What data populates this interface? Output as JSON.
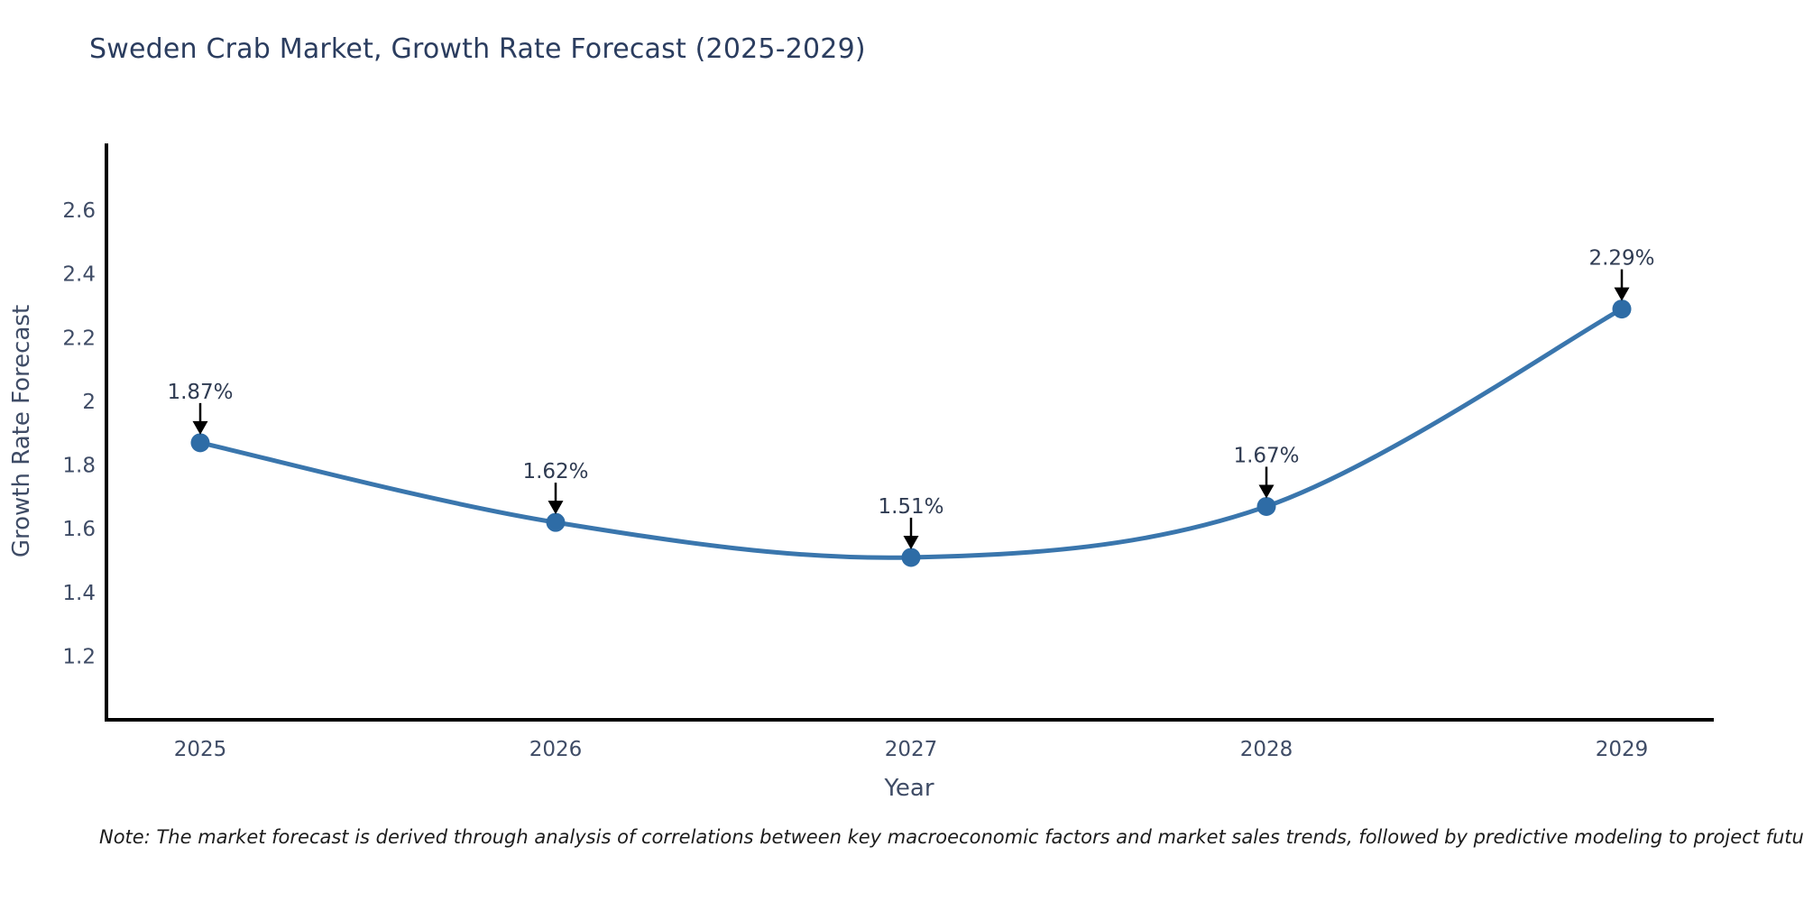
{
  "title": "Sweden Crab Market, Growth Rate Forecast (2025-2029)",
  "note": "Note: The market forecast is derived through analysis of correlations between key macroeconomic factors and market sales trends, followed by predictive modeling to project future sales",
  "colors": {
    "title": "#2b3d5f",
    "tick_label": "#3f4c66",
    "axis_title": "#3f4c66",
    "axis_line": "#000000",
    "annotation_text": "#2f3b52",
    "annotation_arrow": "#000000",
    "background": "#ffffff"
  },
  "chart_data": {
    "type": "line",
    "title": "Sweden Crab Market, Growth Rate Forecast (2025-2029)",
    "xlabel": "Year",
    "ylabel": "Growth Rate Forecast",
    "categories": [
      "2025",
      "2026",
      "2027",
      "2028",
      "2029"
    ],
    "series": [
      {
        "name": "Growth Rate Forecast",
        "values": [
          1.87,
          1.62,
          1.51,
          1.67,
          2.29
        ],
        "point_labels": [
          "1.87%",
          "1.62%",
          "1.51%",
          "1.67%",
          "2.29%"
        ],
        "line_color": "#3a76ad",
        "marker_color": "#2e6ca6",
        "line_shape": "spline"
      }
    ],
    "y_tick_labels": [
      "1.2",
      "1.4",
      "1.6",
      "1.8",
      "2",
      "2.2",
      "2.4",
      "2.6"
    ],
    "y_tick_values": [
      1.2,
      1.4,
      1.6,
      1.8,
      2.0,
      2.2,
      2.4,
      2.6
    ],
    "ylim": [
      1.0,
      2.81
    ],
    "grid": false,
    "legend_position": "none",
    "markers": true,
    "annotations_arrow_down": true
  }
}
